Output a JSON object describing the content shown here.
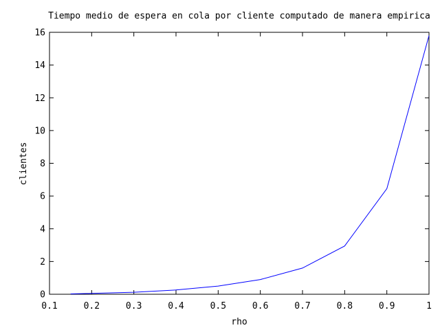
{
  "chart_data": {
    "type": "line",
    "title": "Tiempo medio de espera en cola por cliente computado de manera empirica",
    "xlabel": "rho",
    "ylabel": "clientes",
    "xlim": [
      0.1,
      1
    ],
    "ylim": [
      0,
      16
    ],
    "x_ticks": [
      0.1,
      0.2,
      0.3,
      0.4,
      0.5,
      0.6,
      0.7,
      0.8,
      0.9,
      1
    ],
    "x_tick_labels": [
      "0.1",
      "0.2",
      "0.3",
      "0.4",
      "0.5",
      "0.6",
      "0.7",
      "0.8",
      "0.9",
      "1"
    ],
    "y_ticks": [
      0,
      2,
      4,
      6,
      8,
      10,
      12,
      14,
      16
    ],
    "y_tick_labels": [
      "0",
      "2",
      "4",
      "6",
      "8",
      "10",
      "12",
      "14",
      "16"
    ],
    "grid": false,
    "legend": "none",
    "series": [
      {
        "color": "#0000ff",
        "x": [
          0.15,
          0.2,
          0.3,
          0.4,
          0.5,
          0.6,
          0.7,
          0.8,
          0.9,
          1.0
        ],
        "y": [
          0.02,
          0.05,
          0.12,
          0.26,
          0.5,
          0.9,
          1.6,
          2.95,
          6.45,
          15.8
        ]
      }
    ]
  }
}
